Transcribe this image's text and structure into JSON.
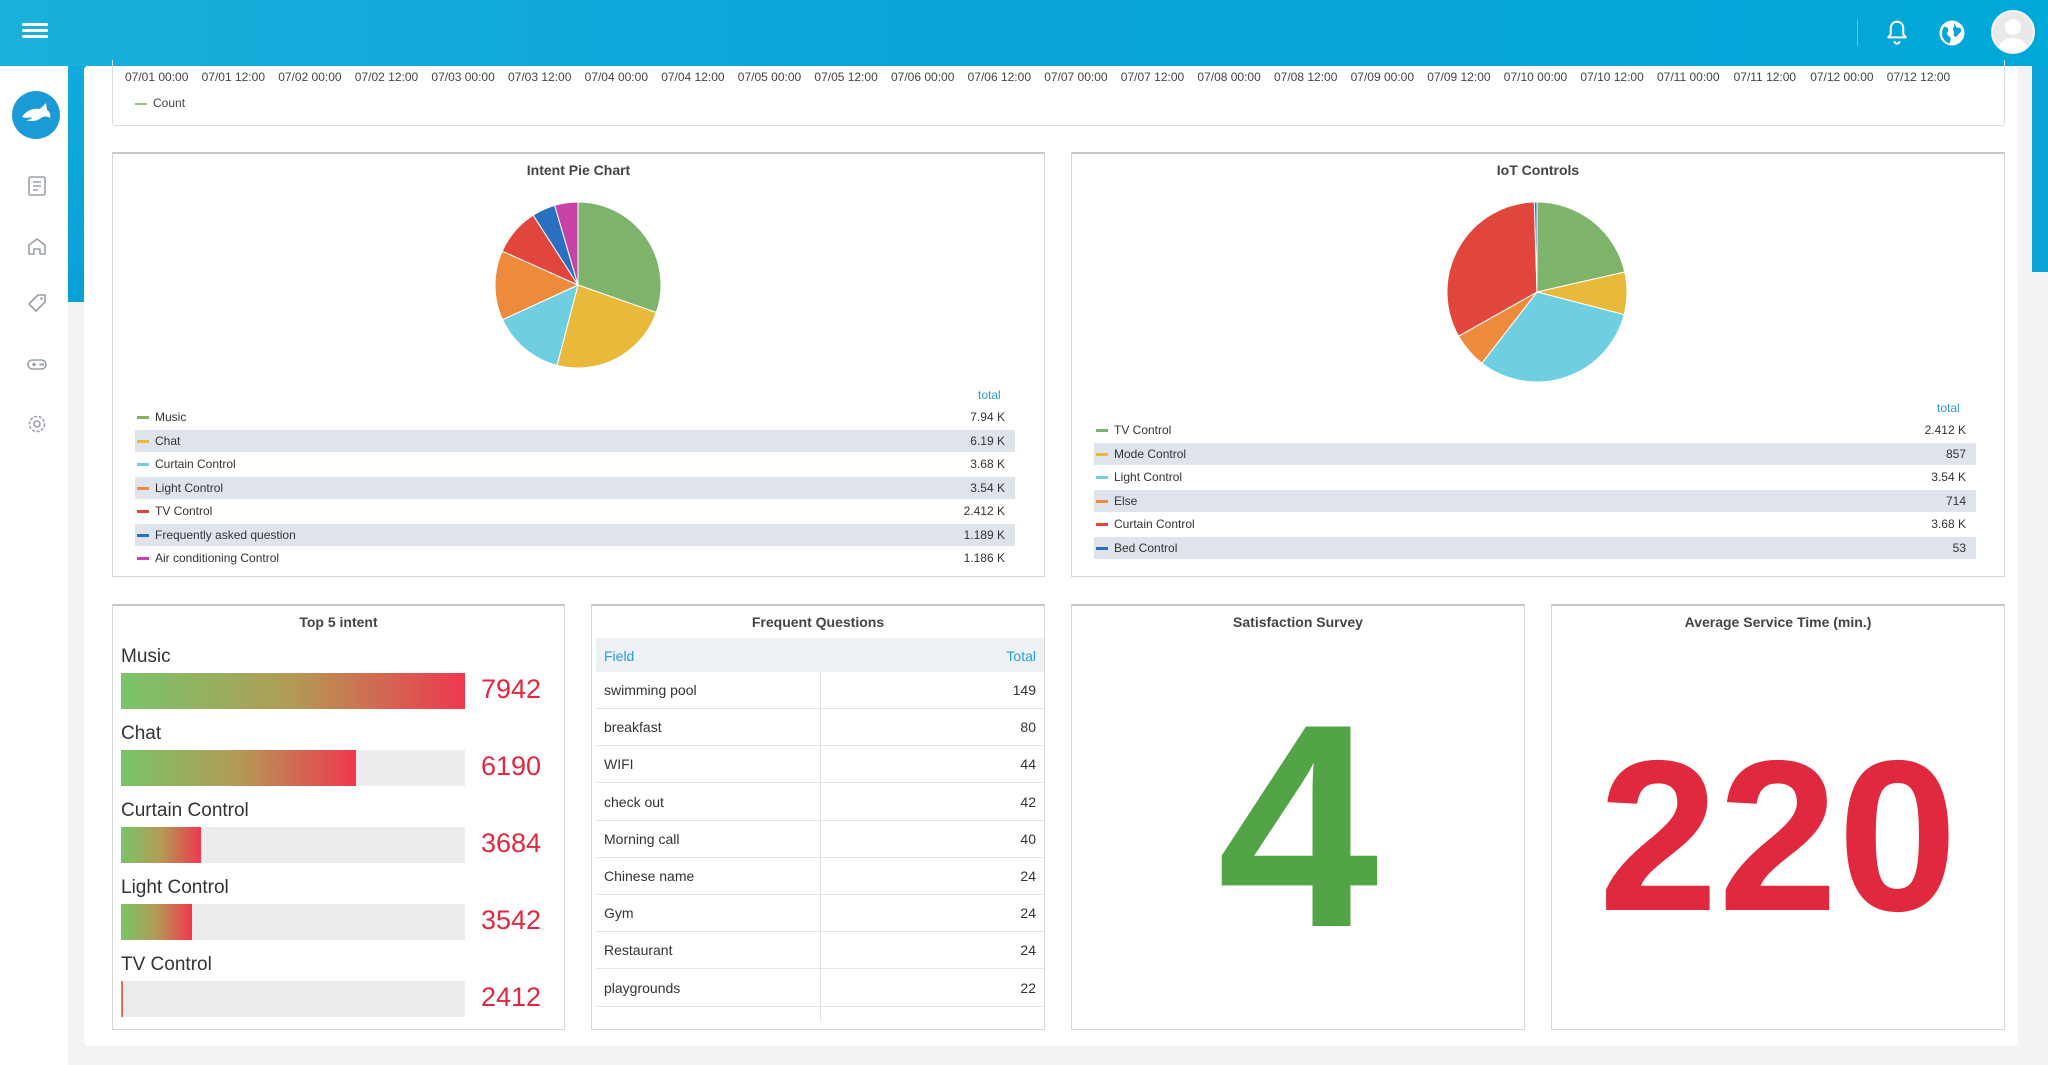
{
  "timeline": {
    "ticks": [
      "07/01 00:00",
      "07/01 12:00",
      "07/02 00:00",
      "07/02 12:00",
      "07/03 00:00",
      "07/03 12:00",
      "07/04 00:00",
      "07/04 12:00",
      "07/05 00:00",
      "07/05 12:00",
      "07/06 00:00",
      "07/06 12:00",
      "07/07 00:00",
      "07/07 12:00",
      "07/08 00:00",
      "07/08 12:00",
      "07/09 00:00",
      "07/09 12:00",
      "07/10 00:00",
      "07/10 12:00",
      "07/11 00:00",
      "07/11 12:00",
      "07/12 00:00",
      "07/12 12:00"
    ],
    "legend": "Count"
  },
  "intent_pie": {
    "title": "Intent Pie Chart",
    "total_header": "total",
    "rows": [
      {
        "name": "Music",
        "value": "7.94 K",
        "color": "#7db36b"
      },
      {
        "name": "Chat",
        "value": "6.19 K",
        "color": "#e8b93a"
      },
      {
        "name": "Curtain Control",
        "value": "3.68 K",
        "color": "#6fcfe0"
      },
      {
        "name": "Light Control",
        "value": "3.54 K",
        "color": "#ee8a3c"
      },
      {
        "name": "TV Control",
        "value": "2.412 K",
        "color": "#e0463c"
      },
      {
        "name": "Frequently asked question",
        "value": "1.189 K",
        "color": "#2a6fc0"
      },
      {
        "name": "Air conditioning Control",
        "value": "1.186 K",
        "color": "#c843a8"
      }
    ]
  },
  "iot_pie": {
    "title": "IoT Controls",
    "total_header": "total",
    "rows": [
      {
        "name": "TV Control",
        "value": "2.412 K",
        "color": "#7db36b"
      },
      {
        "name": "Mode Control",
        "value": "857",
        "color": "#e8b93a"
      },
      {
        "name": "Light Control",
        "value": "3.54 K",
        "color": "#6fcfe0"
      },
      {
        "name": "Else",
        "value": "714",
        "color": "#ee8a3c"
      },
      {
        "name": "Curtain Control",
        "value": "3.68 K",
        "color": "#e0463c"
      },
      {
        "name": "Bed Control",
        "value": "53",
        "color": "#2a6fc0"
      }
    ]
  },
  "top5": {
    "title": "Top 5 intent",
    "max": 7942,
    "items": [
      {
        "name": "Music",
        "value": 7942,
        "label": "7942"
      },
      {
        "name": "Chat",
        "value": 6190,
        "label": "6190"
      },
      {
        "name": "Curtain Control",
        "value": 3684,
        "label": "3684"
      },
      {
        "name": "Light Control",
        "value": 3542,
        "label": "3542"
      },
      {
        "name": "TV Control",
        "value": 2412,
        "label": "2412"
      }
    ]
  },
  "faq": {
    "title": "Frequent Questions",
    "header": {
      "field": "Field",
      "total": "Total"
    },
    "rows": [
      {
        "field": "swimming pool",
        "total": "149"
      },
      {
        "field": "breakfast",
        "total": "80"
      },
      {
        "field": "WIFI",
        "total": "44"
      },
      {
        "field": "check out",
        "total": "42"
      },
      {
        "field": "Morning call",
        "total": "40"
      },
      {
        "field": "Chinese name",
        "total": "24"
      },
      {
        "field": "Gym",
        "total": "24"
      },
      {
        "field": "Restaurant",
        "total": "24"
      },
      {
        "field": "playgrounds",
        "total": "22"
      }
    ]
  },
  "satisfaction": {
    "title": "Satisfaction Survey",
    "value": "4",
    "color": "#52a447"
  },
  "service_time": {
    "title": "Average Service Time (min.)",
    "value": "220",
    "color": "#e0283e"
  },
  "icons": {
    "menu": "hamburger-menu-icon",
    "bell": "bell-icon",
    "globe": "globe-icon",
    "avatar": "user-avatar",
    "sidebar": [
      "logo-icon",
      "document-icon",
      "home-icon",
      "tag-icon",
      "gamepad-icon",
      "settings-icon"
    ]
  },
  "chart_data": [
    {
      "type": "pie",
      "title": "Intent Pie Chart",
      "categories": [
        "Music",
        "Chat",
        "Curtain Control",
        "Light Control",
        "TV Control",
        "Frequently asked question",
        "Air conditioning Control"
      ],
      "values": [
        7940,
        6190,
        3680,
        3540,
        2412,
        1189,
        1186
      ]
    },
    {
      "type": "pie",
      "title": "IoT Controls",
      "categories": [
        "TV Control",
        "Mode Control",
        "Light Control",
        "Else",
        "Curtain Control",
        "Bed Control"
      ],
      "values": [
        2412,
        857,
        3540,
        714,
        3680,
        53
      ]
    },
    {
      "type": "bar",
      "title": "Top 5 intent",
      "categories": [
        "Music",
        "Chat",
        "Curtain Control",
        "Light Control",
        "TV Control"
      ],
      "values": [
        7942,
        6190,
        3684,
        3542,
        2412
      ]
    }
  ]
}
